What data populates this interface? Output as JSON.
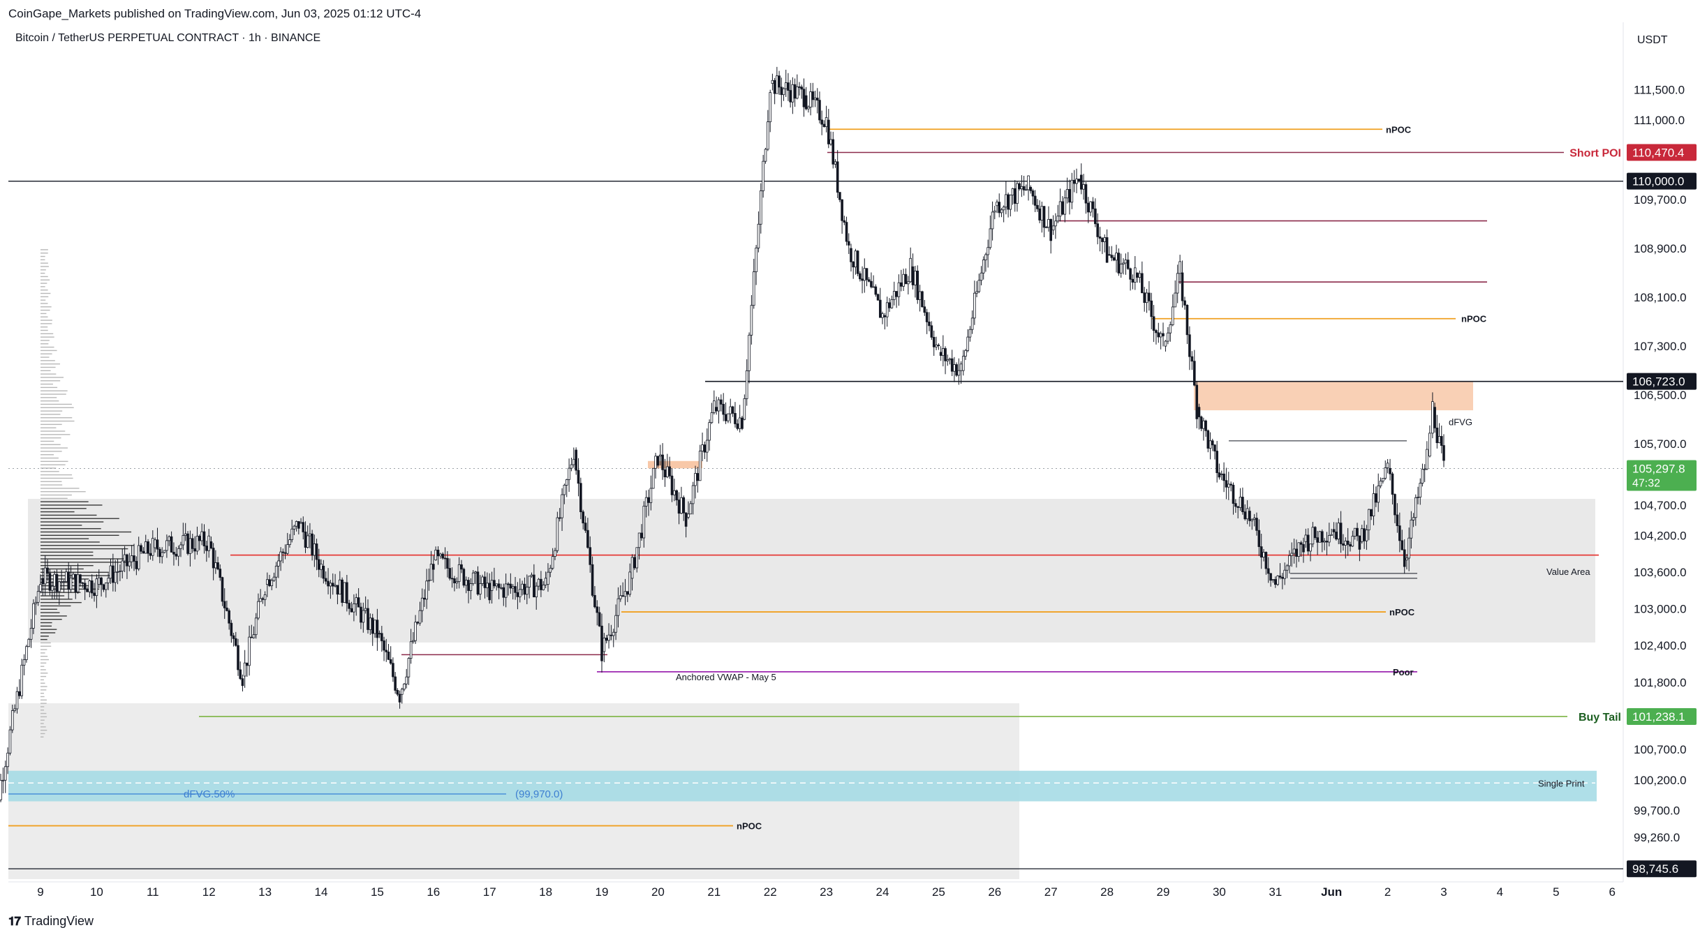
{
  "header": {
    "publisher": "CoinGape_Markets published on TradingView.com, Jun 03, 2025 01:12 UTC-4",
    "symbol": "Bitcoin / TetherUS PERPETUAL CONTRACT · 1h · BINANCE",
    "currency": "USDT"
  },
  "footer": {
    "brand": "TradingView",
    "logo_icon": "tradingview-logo-icon"
  },
  "colors": {
    "up": "#131722",
    "down": "#131722",
    "short_poi": "#c8283a",
    "buy_tail": "#4caf50",
    "last_price": "#4caf50",
    "npoc": "#f0a020",
    "vwap": "#9c27b0",
    "single_print": "#a6dce6",
    "value_area": "#e9e9e9",
    "fvg": "#f8c8a8",
    "red_line": "#e53935"
  },
  "chart_data": {
    "type": "candlestick",
    "ylim": [
      98600,
      112600
    ],
    "y_ticks": [
      "111,500.0",
      "111,000.0",
      "109,700.0",
      "108,900.0",
      "108,100.0",
      "107,300.0",
      "106,500.0",
      "105,700.0",
      "104,700.0",
      "104,200.0",
      "103,600.0",
      "103,000.0",
      "102,400.0",
      "101,800.0",
      "100,700.0",
      "100,200.0",
      "99,700.0",
      "99,260.0"
    ],
    "x_labels": [
      "9",
      "10",
      "11",
      "12",
      "13",
      "14",
      "15",
      "16",
      "17",
      "18",
      "19",
      "20",
      "21",
      "22",
      "23",
      "24",
      "25",
      "26",
      "27",
      "28",
      "29",
      "30",
      "31",
      "Jun",
      "2",
      "3",
      "4",
      "5",
      "6"
    ],
    "price_badges": [
      {
        "label": "Short POI",
        "value": "110,470.4",
        "kind": "short"
      },
      {
        "label": "",
        "value": "110,000.0",
        "kind": "black"
      },
      {
        "label": "",
        "value": "106,723.0",
        "kind": "black"
      },
      {
        "label": "",
        "value": "105,297.8",
        "sub": "47:32",
        "kind": "last"
      },
      {
        "label": "Buy Tail",
        "value": "101,238.1",
        "kind": "buy"
      },
      {
        "label": "",
        "value": "98,745.6",
        "kind": "black"
      }
    ],
    "annotations": {
      "npoc": "nPOC",
      "dfvg": "dFVG",
      "value_area": "Value Area",
      "poor": "Poor",
      "vwap": "Anchored VWAP - May 5",
      "single_print": "Single Print",
      "dfvg_50": "dFVG.50%",
      "dfvg_50_value": "(99,970.0)"
    },
    "key_points": [
      {
        "x": "8",
        "y": 98800
      },
      {
        "x": "9",
        "y": 103500
      },
      {
        "x": "10",
        "y": 103400
      },
      {
        "x": "11",
        "y": 104000
      },
      {
        "x": "12",
        "y": 104100
      },
      {
        "x": "12.6",
        "y": 101900
      },
      {
        "x": "13",
        "y": 103400
      },
      {
        "x": "13.6",
        "y": 104400
      },
      {
        "x": "14",
        "y": 103700
      },
      {
        "x": "15",
        "y": 102600
      },
      {
        "x": "15.4",
        "y": 101600
      },
      {
        "x": "16",
        "y": 103800
      },
      {
        "x": "17",
        "y": 103300
      },
      {
        "x": "18",
        "y": 103400
      },
      {
        "x": "18.5",
        "y": 105600
      },
      {
        "x": "19",
        "y": 102300
      },
      {
        "x": "19.5",
        "y": 103500
      },
      {
        "x": "20",
        "y": 105500
      },
      {
        "x": "20.5",
        "y": 104500
      },
      {
        "x": "21",
        "y": 106300
      },
      {
        "x": "21.5",
        "y": 106100
      },
      {
        "x": "22",
        "y": 111600
      },
      {
        "x": "22.6",
        "y": 111400
      },
      {
        "x": "23",
        "y": 111000
      },
      {
        "x": "23.4",
        "y": 108900
      },
      {
        "x": "24",
        "y": 107800
      },
      {
        "x": "24.5",
        "y": 108600
      },
      {
        "x": "25",
        "y": 107200
      },
      {
        "x": "25.4",
        "y": 106900
      },
      {
        "x": "26",
        "y": 109600
      },
      {
        "x": "26.6",
        "y": 109900
      },
      {
        "x": "27",
        "y": 109200
      },
      {
        "x": "27.5",
        "y": 110100
      },
      {
        "x": "28",
        "y": 108800
      },
      {
        "x": "28.5",
        "y": 108500
      },
      {
        "x": "29",
        "y": 107300
      },
      {
        "x": "29.3",
        "y": 108500
      },
      {
        "x": "29.6",
        "y": 106300
      },
      {
        "x": "30",
        "y": 105200
      },
      {
        "x": "30.5",
        "y": 104600
      },
      {
        "x": "31",
        "y": 103400
      },
      {
        "x": "31.5",
        "y": 104100
      },
      {
        "x": "Jun",
        "y": 104300
      },
      {
        "x": "Jun.5",
        "y": 104100
      },
      {
        "x": "2",
        "y": 105300
      },
      {
        "x": "2.3",
        "y": 103800
      },
      {
        "x": "2.7",
        "y": 105500
      },
      {
        "x": "2.8",
        "y": 106300
      },
      {
        "x": "3",
        "y": 105300
      }
    ]
  }
}
